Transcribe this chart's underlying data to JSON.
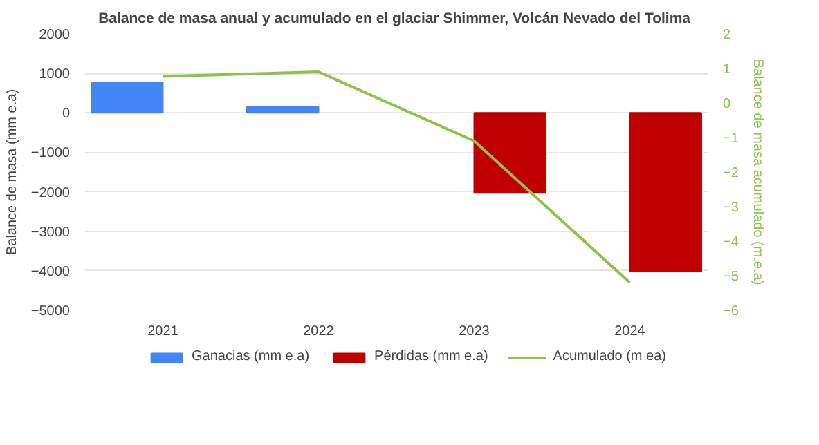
{
  "chart_data": {
    "type": "bar",
    "title": "Balance de masa anual y acumulado en el glaciar Shimmer,  Volcán Nevado del Tolima",
    "categories": [
      "2021",
      "2022",
      "2023",
      "2024"
    ],
    "series": [
      {
        "name": "Ganacias (mm e.a)",
        "color": "#4285f4",
        "values": [
          770,
          150,
          null,
          null
        ]
      },
      {
        "name": "Pérdidas (mm e.a)",
        "color": "#c00000",
        "values": [
          null,
          null,
          -2030,
          -4020
        ]
      },
      {
        "name": "Acumulado (m ea)",
        "type": "line",
        "axis": "y2",
        "color": "#8bc34a",
        "values": [
          0.77,
          0.9,
          -1.1,
          -5.2
        ]
      }
    ],
    "ylabel": "Balance de masa (mm e.a)",
    "y2label": "Balance de masa acumulado (m.e.a)",
    "ylim": [
      -5000,
      2000
    ],
    "yticks": [
      -5000,
      -4000,
      -3000,
      -2000,
      -1000,
      0,
      1000,
      2000
    ],
    "y2lim": [
      -6,
      2
    ],
    "y2ticks": [
      -6,
      -5,
      -4,
      -3,
      -2,
      -1,
      0,
      1,
      2
    ],
    "grid": "y",
    "legend": "bottom"
  }
}
